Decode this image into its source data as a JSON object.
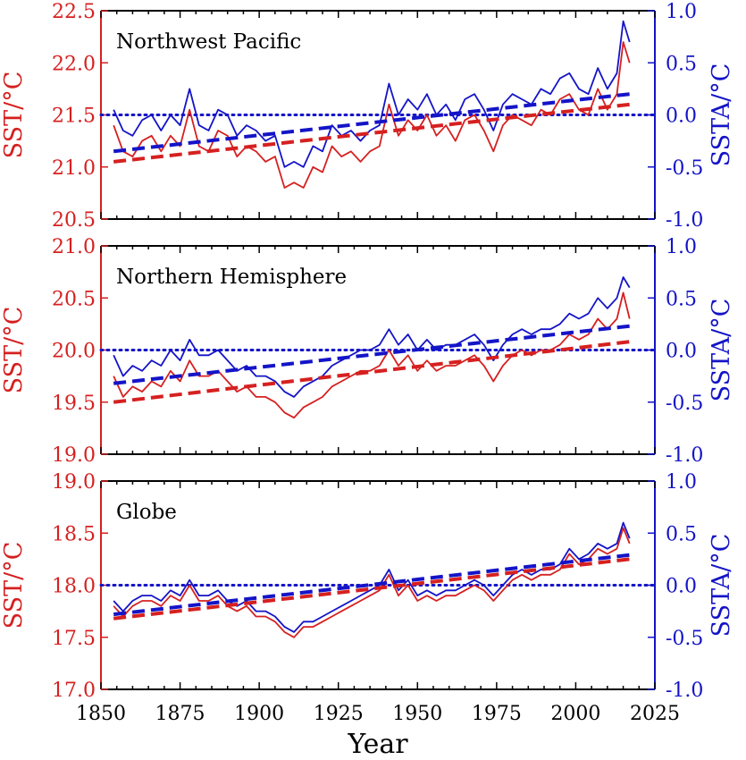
{
  "chart_data": {
    "type": "line",
    "xlabel": "Year",
    "xlim": [
      1850,
      2025
    ],
    "xticks": [
      1850,
      1875,
      1900,
      1925,
      1950,
      1975,
      2000,
      2025
    ],
    "colors": {
      "sst": "#d62020",
      "ssta": "#1414c8",
      "frame": "#000000"
    },
    "panels": [
      {
        "title": "Northwest Pacific",
        "ylabel_left": "SST/°C",
        "ylabel_right": "SSTA/°C",
        "ylim_left": [
          20.5,
          22.5
        ],
        "yticks_left": [
          "20.5",
          "21.0",
          "21.5",
          "22.0",
          "22.5"
        ],
        "ylim_right": [
          -1.0,
          1.0
        ],
        "yticks_right": [
          "-1.0",
          "-0.5",
          "0.0",
          "0.5",
          "1.0"
        ],
        "offset": 21.5,
        "trend_sst": [
          [
            1854,
            21.05
          ],
          [
            2017,
            21.6
          ]
        ],
        "trend_ssta": [
          [
            1854,
            -0.35
          ],
          [
            2017,
            0.2
          ]
        ],
        "zero_line": 0.0,
        "sst_series": {
          "x": [
            1854,
            1857,
            1860,
            1863,
            1866,
            1869,
            1872,
            1875,
            1878,
            1881,
            1884,
            1887,
            1890,
            1893,
            1896,
            1899,
            1902,
            1905,
            1908,
            1911,
            1914,
            1917,
            1920,
            1923,
            1926,
            1929,
            1932,
            1935,
            1938,
            1941,
            1944,
            1947,
            1950,
            1953,
            1956,
            1959,
            1962,
            1965,
            1968,
            1971,
            1974,
            1977,
            1980,
            1983,
            1986,
            1989,
            1992,
            1995,
            1998,
            2001,
            2004,
            2007,
            2010,
            2013,
            2015,
            2017
          ],
          "y": [
            21.4,
            21.15,
            21.1,
            21.25,
            21.3,
            21.15,
            21.3,
            21.2,
            21.55,
            21.2,
            21.15,
            21.35,
            21.3,
            21.1,
            21.2,
            21.15,
            21.05,
            21.1,
            20.8,
            20.85,
            20.8,
            21.0,
            20.95,
            21.2,
            21.1,
            21.15,
            21.05,
            21.15,
            21.2,
            21.6,
            21.3,
            21.45,
            21.35,
            21.5,
            21.3,
            21.4,
            21.25,
            21.45,
            21.5,
            21.35,
            21.15,
            21.4,
            21.5,
            21.45,
            21.4,
            21.55,
            21.5,
            21.65,
            21.7,
            21.55,
            21.5,
            21.75,
            21.55,
            21.7,
            22.2,
            22.0
          ]
        },
        "ssta_series": {
          "x": [
            1854,
            1857,
            1860,
            1863,
            1866,
            1869,
            1872,
            1875,
            1878,
            1881,
            1884,
            1887,
            1890,
            1893,
            1896,
            1899,
            1902,
            1905,
            1908,
            1911,
            1914,
            1917,
            1920,
            1923,
            1926,
            1929,
            1932,
            1935,
            1938,
            1941,
            1944,
            1947,
            1950,
            1953,
            1956,
            1959,
            1962,
            1965,
            1968,
            1971,
            1974,
            1977,
            1980,
            1983,
            1986,
            1989,
            1992,
            1995,
            1998,
            2001,
            2004,
            2007,
            2010,
            2013,
            2015,
            2017
          ],
          "y": [
            0.05,
            -0.15,
            -0.2,
            -0.05,
            0.0,
            -0.15,
            0.0,
            -0.1,
            0.25,
            -0.1,
            -0.15,
            0.05,
            0.0,
            -0.2,
            -0.1,
            -0.15,
            -0.25,
            -0.2,
            -0.5,
            -0.45,
            -0.5,
            -0.3,
            -0.35,
            -0.1,
            -0.2,
            -0.15,
            -0.25,
            -0.15,
            -0.1,
            0.3,
            0.0,
            0.15,
            0.05,
            0.2,
            0.0,
            0.1,
            -0.05,
            0.15,
            0.2,
            0.05,
            -0.15,
            0.1,
            0.2,
            0.15,
            0.1,
            0.25,
            0.2,
            0.35,
            0.4,
            0.25,
            0.2,
            0.45,
            0.25,
            0.4,
            0.9,
            0.7
          ]
        }
      },
      {
        "title": "Northern Hemisphere",
        "ylabel_left": "SST/°C",
        "ylabel_right": "SSTA/°C",
        "ylim_left": [
          19.0,
          21.0
        ],
        "yticks_left": [
          "19.0",
          "19.5",
          "20.0",
          "20.5",
          "21.0"
        ],
        "ylim_right": [
          -1.0,
          1.0
        ],
        "yticks_right": [
          "-1.0",
          "-0.5",
          "0.0",
          "0.5",
          "1.0"
        ],
        "offset": 20.0,
        "trend_sst": [
          [
            1854,
            19.5
          ],
          [
            2017,
            20.08
          ]
        ],
        "trend_ssta": [
          [
            1854,
            -0.32
          ],
          [
            2017,
            0.23
          ]
        ],
        "zero_line": 0.0,
        "sst_series": {
          "x": [
            1854,
            1857,
            1860,
            1863,
            1866,
            1869,
            1872,
            1875,
            1878,
            1881,
            1884,
            1887,
            1890,
            1893,
            1896,
            1899,
            1902,
            1905,
            1908,
            1911,
            1914,
            1917,
            1920,
            1923,
            1926,
            1929,
            1932,
            1935,
            1938,
            1941,
            1944,
            1947,
            1950,
            1953,
            1956,
            1959,
            1962,
            1965,
            1968,
            1971,
            1974,
            1977,
            1980,
            1983,
            1986,
            1989,
            1992,
            1995,
            1998,
            2001,
            2004,
            2007,
            2010,
            2013,
            2015,
            2017
          ],
          "y": [
            19.75,
            19.55,
            19.65,
            19.6,
            19.7,
            19.65,
            19.8,
            19.7,
            19.9,
            19.75,
            19.75,
            19.8,
            19.7,
            19.6,
            19.65,
            19.55,
            19.55,
            19.5,
            19.4,
            19.35,
            19.45,
            19.5,
            19.55,
            19.65,
            19.7,
            19.75,
            19.8,
            19.8,
            19.85,
            20.0,
            19.85,
            19.95,
            19.8,
            19.9,
            19.8,
            19.85,
            19.85,
            19.9,
            19.95,
            19.85,
            19.7,
            19.85,
            19.95,
            20.0,
            19.95,
            20.0,
            20.0,
            20.05,
            20.15,
            20.1,
            20.15,
            20.3,
            20.2,
            20.3,
            20.55,
            20.3
          ]
        },
        "ssta_series": {
          "x": [
            1854,
            1857,
            1860,
            1863,
            1866,
            1869,
            1872,
            1875,
            1878,
            1881,
            1884,
            1887,
            1890,
            1893,
            1896,
            1899,
            1902,
            1905,
            1908,
            1911,
            1914,
            1917,
            1920,
            1923,
            1926,
            1929,
            1932,
            1935,
            1938,
            1941,
            1944,
            1947,
            1950,
            1953,
            1956,
            1959,
            1962,
            1965,
            1968,
            1971,
            1974,
            1977,
            1980,
            1983,
            1986,
            1989,
            1992,
            1995,
            1998,
            2001,
            2004,
            2007,
            2010,
            2013,
            2015,
            2017
          ],
          "y": [
            -0.05,
            -0.25,
            -0.15,
            -0.2,
            -0.1,
            -0.15,
            0.0,
            -0.1,
            0.1,
            -0.05,
            -0.05,
            0.0,
            -0.1,
            -0.2,
            -0.15,
            -0.25,
            -0.25,
            -0.3,
            -0.4,
            -0.45,
            -0.35,
            -0.3,
            -0.25,
            -0.15,
            -0.1,
            -0.05,
            0.0,
            0.0,
            0.05,
            0.2,
            0.05,
            0.15,
            0.0,
            0.1,
            0.0,
            0.05,
            0.05,
            0.1,
            0.15,
            0.05,
            -0.1,
            0.05,
            0.15,
            0.2,
            0.15,
            0.2,
            0.2,
            0.25,
            0.35,
            0.3,
            0.35,
            0.5,
            0.4,
            0.5,
            0.7,
            0.6
          ]
        }
      },
      {
        "title": "Globe",
        "ylabel_left": "SST/°C",
        "ylabel_right": "SSTA/°C",
        "ylim_left": [
          17.0,
          19.0
        ],
        "yticks_left": [
          "17.0",
          "17.5",
          "18.0",
          "18.5",
          "19.0"
        ],
        "ylim_right": [
          -1.0,
          1.0
        ],
        "yticks_right": [
          "-1.0",
          "-0.5",
          "0.0",
          "0.5",
          "1.0"
        ],
        "offset": 18.0,
        "trend_sst": [
          [
            1854,
            17.68
          ],
          [
            2017,
            18.25
          ]
        ],
        "trend_ssta": [
          [
            1854,
            -0.28
          ],
          [
            2017,
            0.29
          ]
        ],
        "zero_line": 0.0,
        "sst_series": {
          "x": [
            1854,
            1857,
            1860,
            1863,
            1866,
            1869,
            1872,
            1875,
            1878,
            1881,
            1884,
            1887,
            1890,
            1893,
            1896,
            1899,
            1902,
            1905,
            1908,
            1911,
            1914,
            1917,
            1920,
            1923,
            1926,
            1929,
            1932,
            1935,
            1938,
            1941,
            1944,
            1947,
            1950,
            1953,
            1956,
            1959,
            1962,
            1965,
            1968,
            1971,
            1974,
            1977,
            1980,
            1983,
            1986,
            1989,
            1992,
            1995,
            1998,
            2001,
            2004,
            2007,
            2010,
            2013,
            2015,
            2017
          ],
          "y": [
            17.8,
            17.7,
            17.8,
            17.85,
            17.85,
            17.8,
            17.9,
            17.85,
            18.0,
            17.85,
            17.85,
            17.9,
            17.8,
            17.75,
            17.8,
            17.7,
            17.7,
            17.65,
            17.55,
            17.5,
            17.6,
            17.6,
            17.65,
            17.7,
            17.75,
            17.8,
            17.85,
            17.9,
            17.95,
            18.1,
            17.9,
            18.0,
            17.85,
            17.9,
            17.85,
            17.9,
            17.9,
            17.95,
            18.0,
            17.95,
            17.85,
            17.95,
            18.05,
            18.1,
            18.05,
            18.1,
            18.1,
            18.15,
            18.3,
            18.2,
            18.25,
            18.35,
            18.3,
            18.35,
            18.55,
            18.4
          ]
        },
        "ssta_series": {
          "x": [
            1854,
            1857,
            1860,
            1863,
            1866,
            1869,
            1872,
            1875,
            1878,
            1881,
            1884,
            1887,
            1890,
            1893,
            1896,
            1899,
            1902,
            1905,
            1908,
            1911,
            1914,
            1917,
            1920,
            1923,
            1926,
            1929,
            1932,
            1935,
            1938,
            1941,
            1944,
            1947,
            1950,
            1953,
            1956,
            1959,
            1962,
            1965,
            1968,
            1971,
            1974,
            1977,
            1980,
            1983,
            1986,
            1989,
            1992,
            1995,
            1998,
            2001,
            2004,
            2007,
            2010,
            2013,
            2015,
            2017
          ],
          "y": [
            -0.15,
            -0.25,
            -0.15,
            -0.1,
            -0.1,
            -0.15,
            -0.05,
            -0.1,
            0.05,
            -0.1,
            -0.1,
            -0.05,
            -0.15,
            -0.2,
            -0.15,
            -0.25,
            -0.25,
            -0.3,
            -0.4,
            -0.45,
            -0.35,
            -0.35,
            -0.3,
            -0.25,
            -0.2,
            -0.15,
            -0.1,
            -0.05,
            0.0,
            0.15,
            -0.05,
            0.05,
            -0.1,
            -0.05,
            -0.1,
            -0.05,
            -0.05,
            0.0,
            0.05,
            0.0,
            -0.1,
            0.0,
            0.1,
            0.15,
            0.1,
            0.15,
            0.15,
            0.2,
            0.35,
            0.25,
            0.3,
            0.4,
            0.35,
            0.4,
            0.6,
            0.45
          ]
        }
      }
    ]
  }
}
